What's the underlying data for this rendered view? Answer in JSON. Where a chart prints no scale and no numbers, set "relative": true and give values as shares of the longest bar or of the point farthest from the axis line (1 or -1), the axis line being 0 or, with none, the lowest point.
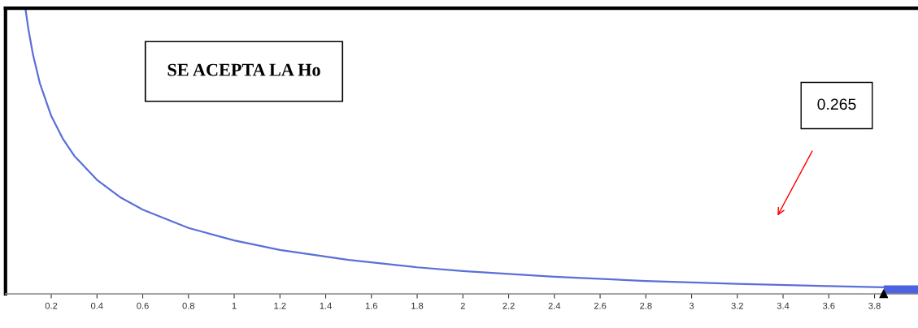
{
  "chart_data": {
    "type": "line",
    "relative": true,
    "xlim": [
      0,
      3.99
    ],
    "xticks": [
      0.2,
      0.4,
      0.6,
      0.8,
      1,
      1.2,
      1.4,
      1.6,
      1.8,
      2,
      2.2,
      2.4,
      2.6,
      2.8,
      3,
      3.2,
      3.4,
      3.6,
      3.8
    ],
    "grid": false,
    "legend": false,
    "tick_labels": "x",
    "series": [
      {
        "color": "#5a6fd8",
        "line_style": "solid",
        "x": [
          0.087,
          0.1,
          0.12,
          0.15,
          0.2,
          0.25,
          0.3,
          0.4,
          0.5,
          0.6,
          0.8,
          1.0,
          1.2,
          1.5,
          1.8,
          2.0,
          2.4,
          2.8,
          3.2,
          3.6,
          3.84
        ],
        "values": [
          1,
          0.927,
          0.838,
          0.738,
          0.623,
          0.544,
          0.484,
          0.399,
          0.339,
          0.295,
          0.231,
          0.187,
          0.154,
          0.119,
          0.093,
          0.08,
          0.06,
          0.045,
          0.035,
          0.027,
          0.023
        ]
      },
      {
        "type": "area",
        "color": "#4b63e0",
        "x": [
          3.84,
          3.99
        ],
        "values": [
          0.03,
          0.03
        ]
      },
      {
        "type": "scatter",
        "color": "#000000",
        "marker": "triangle",
        "x": [
          3.84
        ],
        "values": [
          0
        ]
      }
    ],
    "annotations": [
      {
        "text": "SE ACEPTA LA Ho"
      },
      {
        "text": "0.265"
      }
    ]
  }
}
